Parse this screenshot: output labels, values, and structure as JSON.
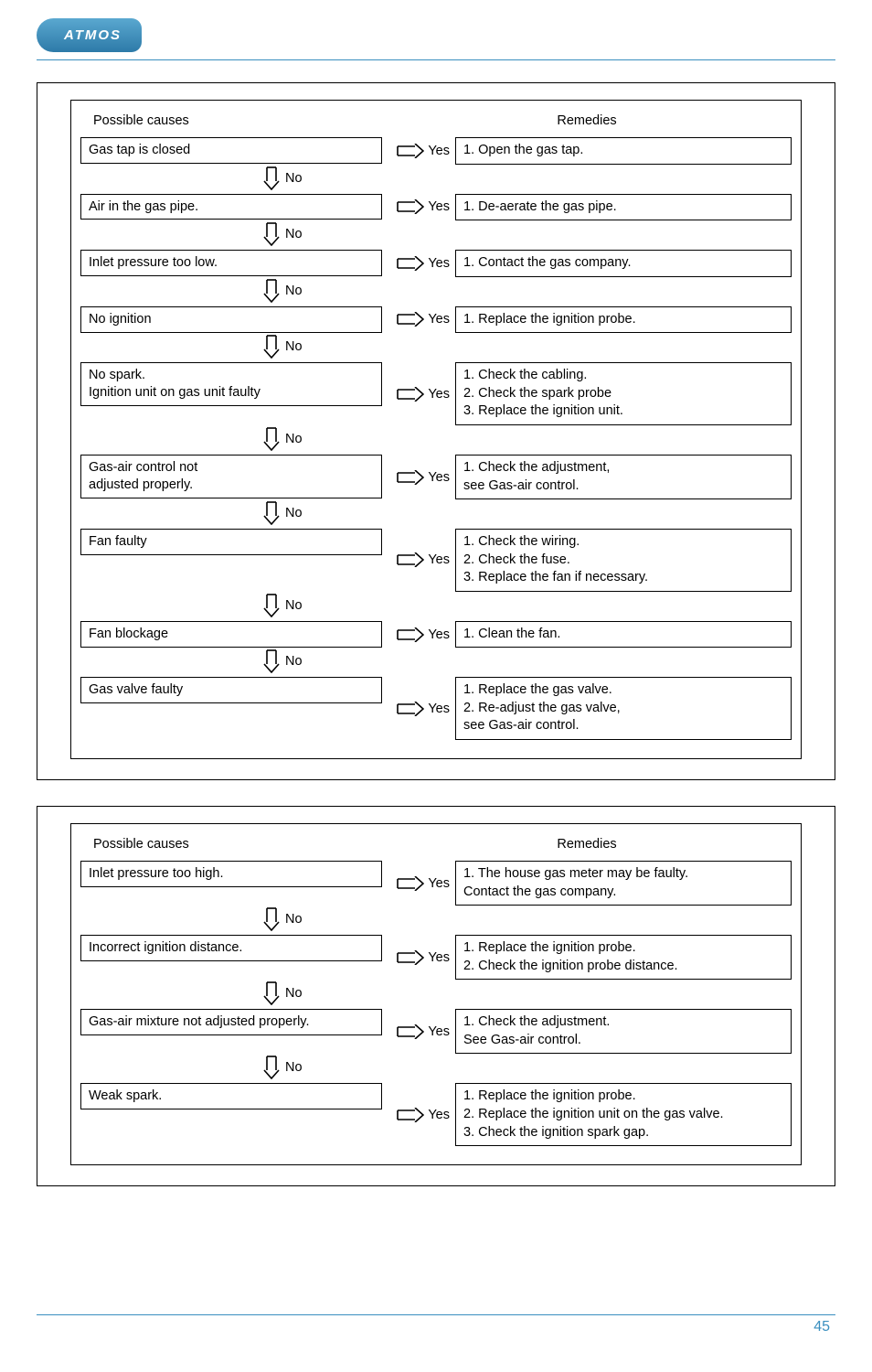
{
  "logo_text": "ATMOS",
  "labels": {
    "possible_causes": "Possible causes",
    "remedies": "Remedies",
    "yes": "Yes",
    "no": "No"
  },
  "page_number": "45",
  "panel1": {
    "rows": [
      {
        "cause": "Gas tap is closed",
        "remedy": "1. Open the gas tap."
      },
      {
        "cause": "Air in the gas pipe.",
        "remedy": "1. De-aerate the gas pipe."
      },
      {
        "cause": "Inlet pressure too low.",
        "remedy": "1. Contact the gas company."
      },
      {
        "cause": "No ignition",
        "remedy": "1. Replace the ignition probe."
      },
      {
        "cause": "No spark.\nIgnition unit on gas unit faulty",
        "remedy": "1. Check the cabling.\n2. Check the spark probe\n3. Replace the ignition unit."
      },
      {
        "cause": "Gas-air control not\nadjusted properly.",
        "remedy": "1. Check the adjustment,\n    see Gas-air control."
      },
      {
        "cause": "Fan faulty",
        "remedy": "1. Check the wiring.\n2. Check the fuse.\n3. Replace the fan if necessary."
      },
      {
        "cause": "Fan blockage",
        "remedy": "1. Clean the fan."
      },
      {
        "cause": "Gas valve faulty",
        "remedy": "1. Replace the gas valve.\n2. Re-adjust the gas valve,\n    see Gas-air control.",
        "last": true
      }
    ]
  },
  "panel2": {
    "rows": [
      {
        "cause": "Inlet pressure too high.",
        "remedy": "1. The house gas meter may be faulty.\n    Contact the gas company."
      },
      {
        "cause": "Incorrect ignition distance.",
        "remedy": "1. Replace the ignition probe.\n2. Check the ignition probe distance."
      },
      {
        "cause": "Gas-air mixture not adjusted properly.",
        "remedy": "1. Check the adjustment.\n    See Gas-air control."
      },
      {
        "cause": "Weak spark.",
        "remedy": "1. Replace the ignition probe.\n2. Replace the ignition unit on the gas valve.\n3. Check the ignition spark gap.",
        "last": true
      }
    ]
  }
}
